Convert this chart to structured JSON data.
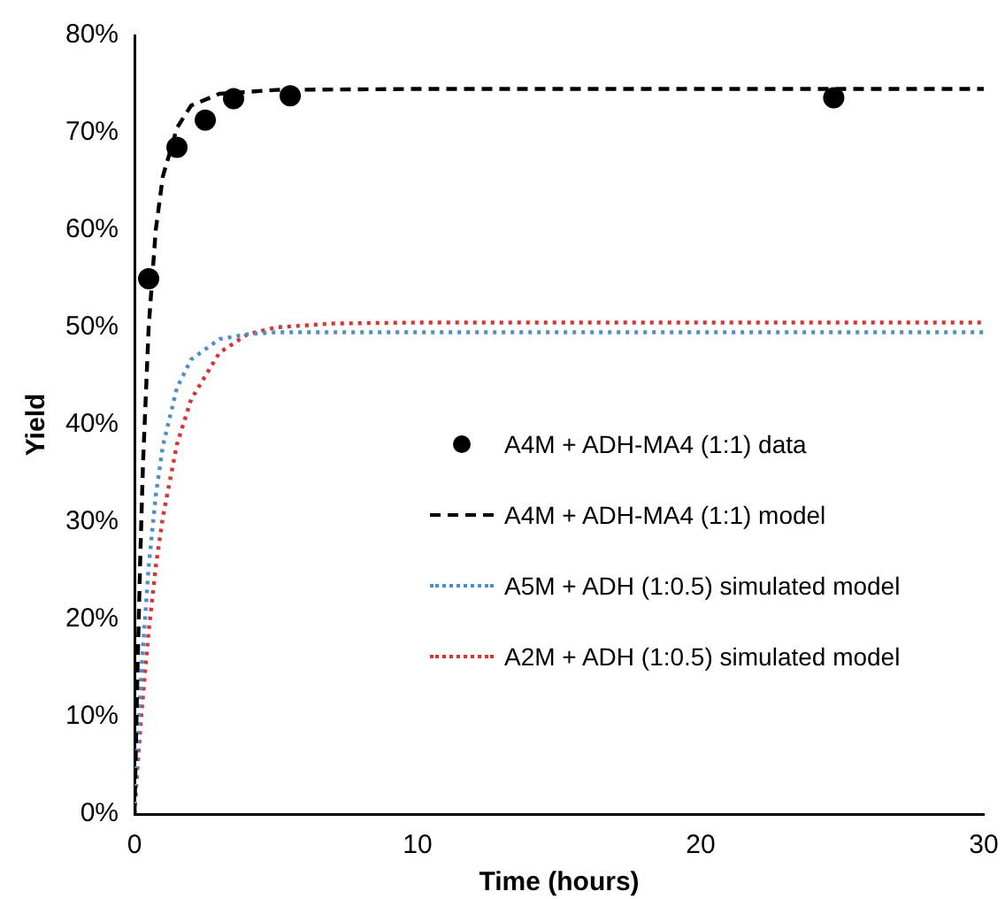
{
  "chart_data": {
    "type": "line",
    "xlabel": "Time (hours)",
    "ylabel": "Yield",
    "xlim": [
      0,
      30
    ],
    "xticks": [
      0,
      10,
      20,
      30
    ],
    "ylim": [
      0,
      80
    ],
    "yticks": [
      {
        "value": 0,
        "label": "0%"
      },
      {
        "value": 10,
        "label": "10%"
      },
      {
        "value": 20,
        "label": "20%"
      },
      {
        "value": 30,
        "label": "30%"
      },
      {
        "value": 40,
        "label": "40%"
      },
      {
        "value": 50,
        "label": "50%"
      },
      {
        "value": 60,
        "label": "60%"
      },
      {
        "value": 70,
        "label": "70%"
      },
      {
        "value": 80,
        "label": "80%"
      }
    ],
    "grid": false,
    "legend": "right",
    "series": [
      {
        "name": "A4M + ADH-MA4 (1:1) data",
        "type": "scatter",
        "marker": "circle",
        "color": "#000000",
        "x": [
          0.5,
          1.5,
          2.5,
          3.5,
          5.5,
          24.7
        ],
        "values": [
          55,
          68.5,
          71.3,
          73.5,
          73.8,
          73.6
        ]
      },
      {
        "name": "A4M + ADH-MA4 (1:1) model",
        "type": "line",
        "line_style": "dashed",
        "marker": "none",
        "color": "#000000",
        "x": [
          0,
          0.1,
          0.2,
          0.3,
          0.5,
          0.75,
          1,
          1.5,
          2,
          3,
          5,
          10,
          20,
          30
        ],
        "values": [
          0,
          14,
          26,
          36,
          50,
          60,
          65.5,
          70.5,
          72.8,
          74,
          74.4,
          74.5,
          74.5,
          74.5
        ]
      },
      {
        "name": "A5M + ADH (1:0.5) simulated model",
        "type": "line",
        "line_style": "dotted",
        "marker": "none",
        "color": "#4a8fd0",
        "x": [
          0,
          0.1,
          0.25,
          0.5,
          0.75,
          1,
          1.5,
          2,
          3,
          4,
          5,
          10,
          20,
          30
        ],
        "values": [
          0,
          6.6,
          15,
          25.4,
          32.7,
          37.8,
          43.8,
          46.7,
          48.8,
          49.3,
          49.5,
          49.5,
          49.5,
          49.5
        ]
      },
      {
        "name": "A2M + ADH (1:0.5) simulated model",
        "type": "line",
        "line_style": "dotted",
        "marker": "none",
        "color": "#e03030",
        "x": [
          0,
          0.1,
          0.25,
          0.5,
          0.75,
          1,
          1.5,
          2,
          3,
          4,
          5,
          7,
          10,
          20,
          30
        ],
        "values": [
          0,
          4.5,
          10.5,
          18.8,
          25.4,
          30.5,
          38,
          42.6,
          47.4,
          49.3,
          50,
          50.4,
          50.5,
          50.5,
          50.5
        ]
      }
    ]
  }
}
